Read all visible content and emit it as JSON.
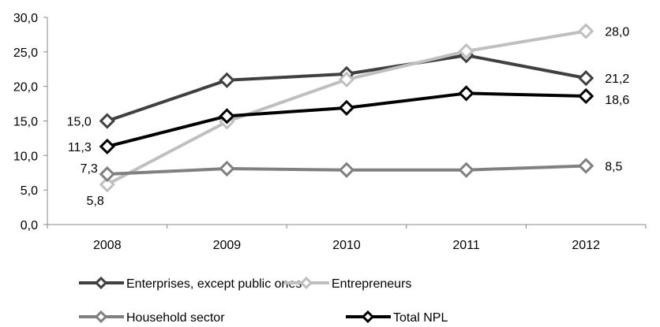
{
  "chart_data": {
    "type": "line",
    "categories": [
      "2008",
      "2009",
      "2010",
      "2011",
      "2012"
    ],
    "ylim": [
      0,
      30
    ],
    "yticks": [
      "0,0",
      "5,0",
      "10,0",
      "15,0",
      "20,0",
      "25,0",
      "30,0"
    ],
    "grid": false,
    "legend_position": "bottom",
    "series": [
      {
        "name": "Enterprises, except public ones",
        "values": [
          15.0,
          20.9,
          21.8,
          24.5,
          21.2
        ],
        "color": "#404040",
        "labels": [
          "15,0",
          "",
          "",
          "",
          "21,2"
        ]
      },
      {
        "name": "Entrepreneurs",
        "values": [
          5.8,
          14.9,
          21.0,
          25.1,
          28.0
        ],
        "color": "#bfbfbf",
        "labels": [
          "5,8",
          "",
          "",
          "",
          "28,0"
        ]
      },
      {
        "name": "Household sector",
        "values": [
          7.3,
          8.1,
          7.9,
          7.9,
          8.5
        ],
        "color": "#808080",
        "labels": [
          "7,3",
          "",
          "",
          "",
          "8,5"
        ]
      },
      {
        "name": "Total NPL",
        "values": [
          11.3,
          15.7,
          16.9,
          19.0,
          18.6
        ],
        "color": "#000000",
        "labels": [
          "11,3",
          "",
          "",
          "",
          "18,6"
        ]
      }
    ]
  }
}
